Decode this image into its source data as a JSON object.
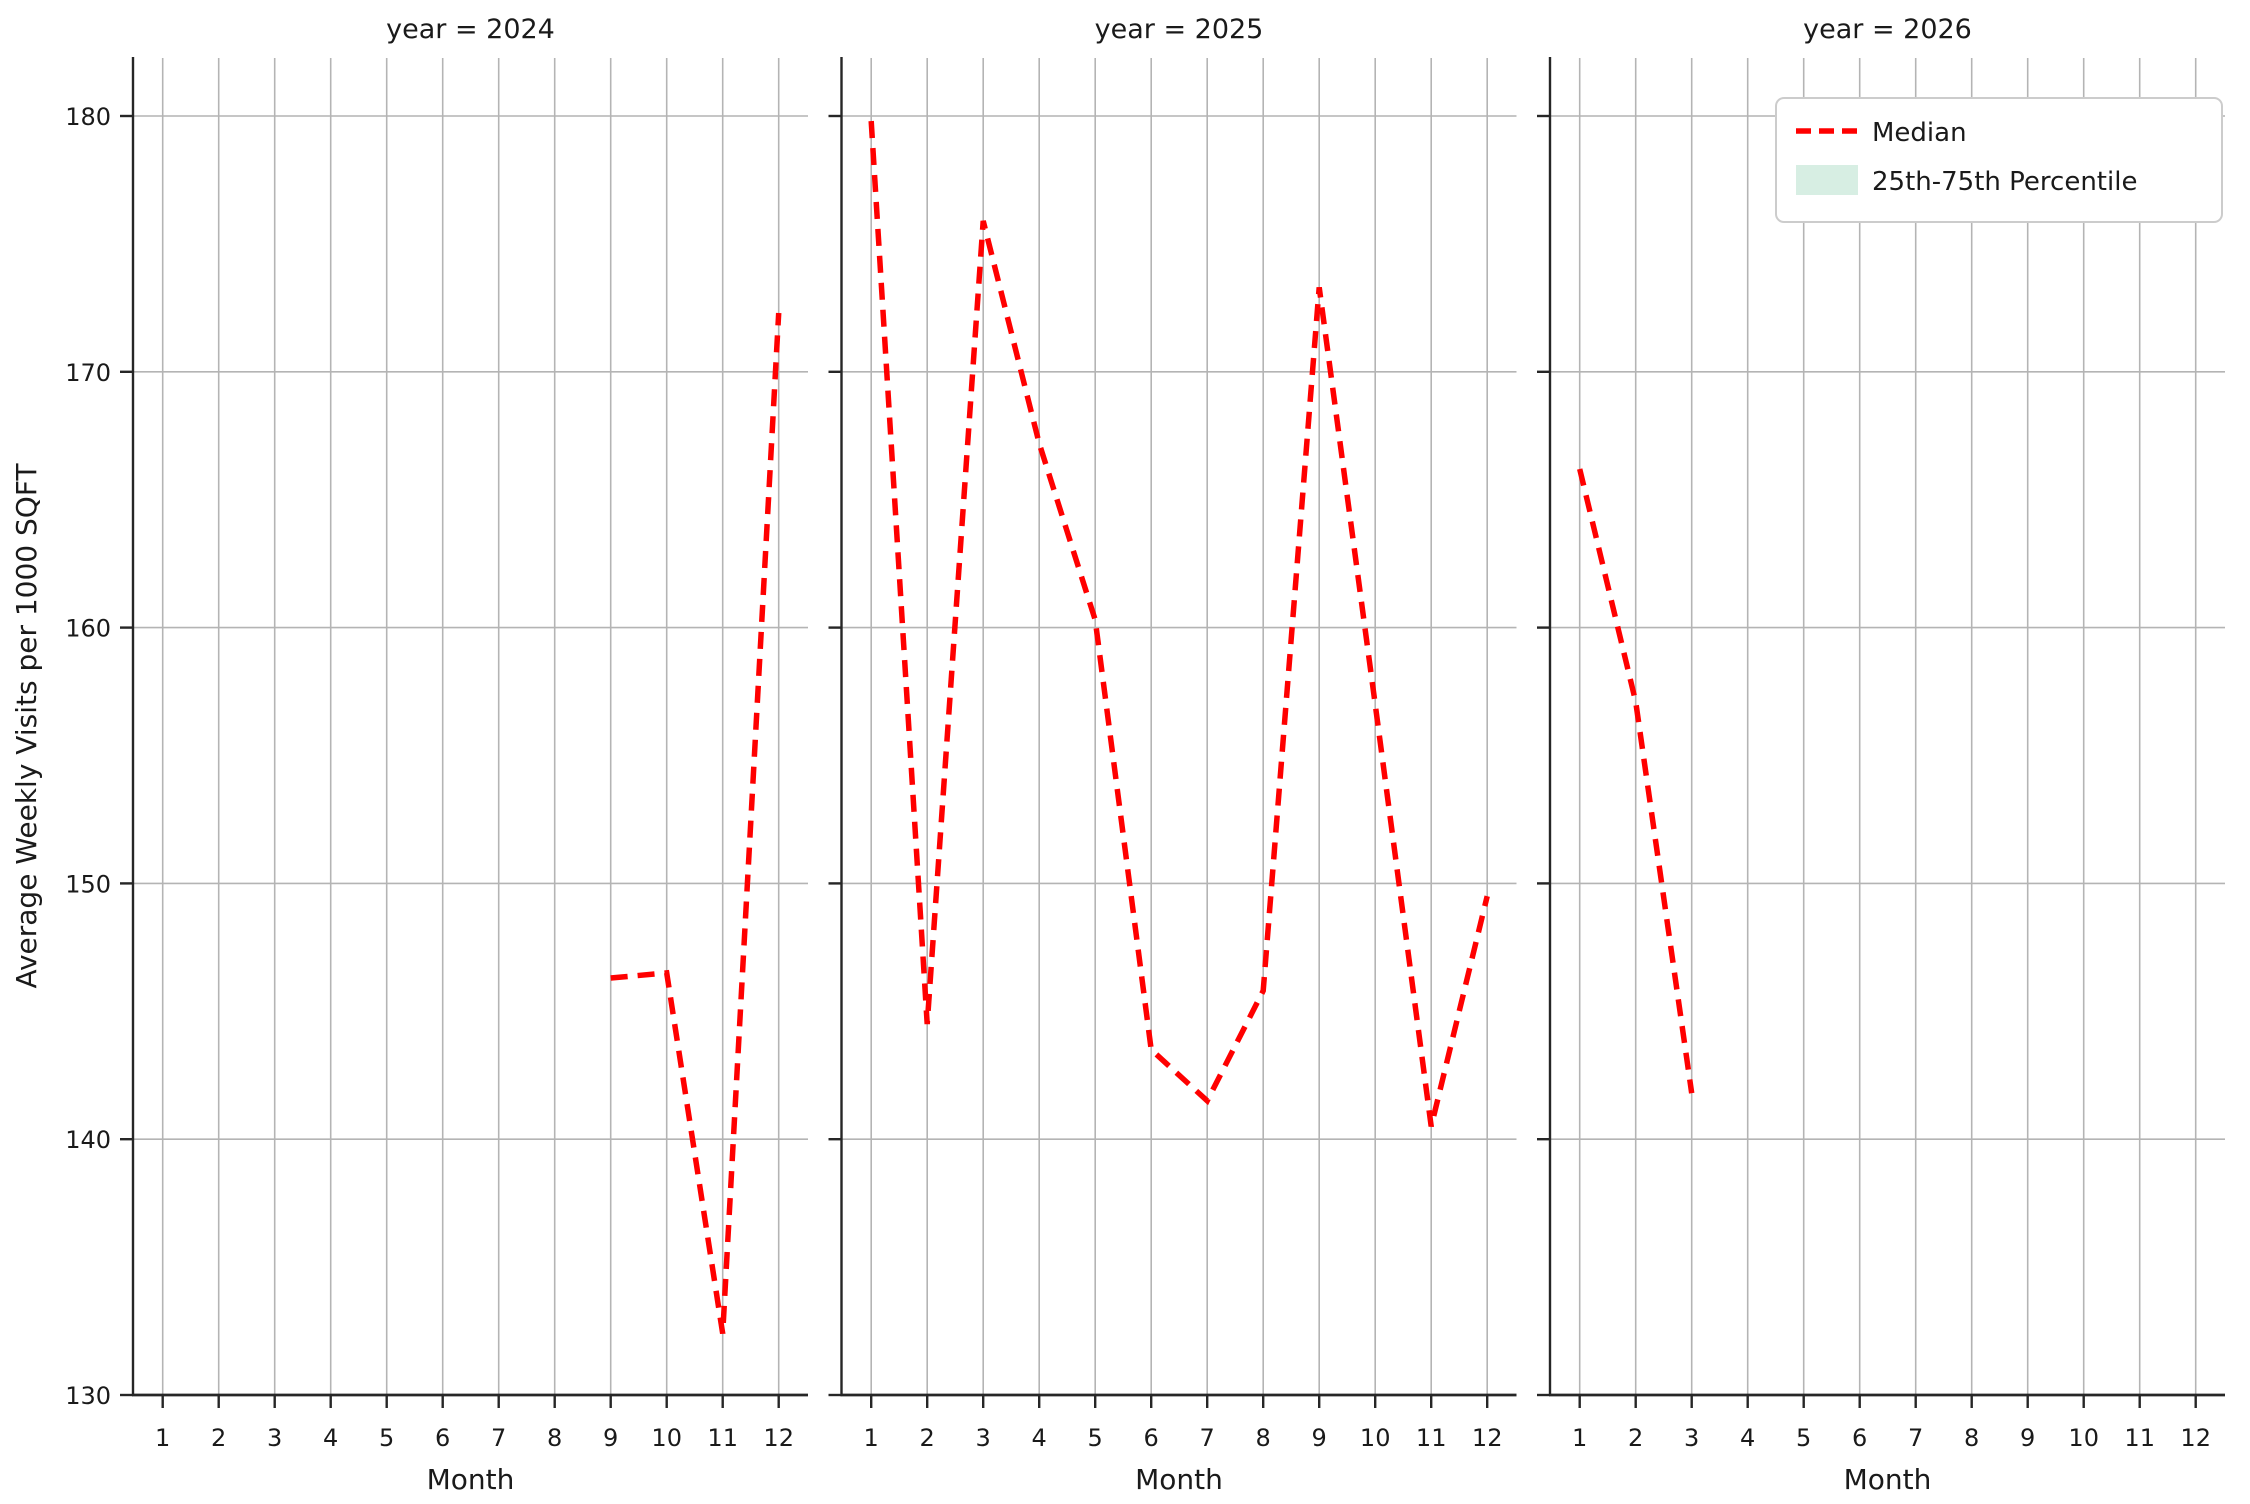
{
  "figure": {
    "panel_titles": [
      "year = 2024",
      "year = 2025",
      "year = 2026"
    ],
    "x_axis_label": "Month",
    "y_axis_label": "Average Weekly Visits per 1000 SQFT",
    "x_ticks": [
      1,
      2,
      3,
      4,
      5,
      6,
      7,
      8,
      9,
      10,
      11,
      12
    ],
    "y_ticks": [
      130,
      140,
      150,
      160,
      170,
      180
    ]
  },
  "legend": {
    "entries": [
      {
        "label": "Median",
        "swatch": "dashed-line-sample",
        "color": "#ff0000"
      },
      {
        "label": "25th-75th Percentile",
        "swatch": "patch-sample",
        "color": "#d7eee3"
      }
    ]
  },
  "colors": {
    "median_line": "#ff0000",
    "percentile_band": "#d7eee3",
    "grid": "#b4b4b4",
    "spine": "#262626",
    "text": "#1a1a1a",
    "legend_border": "#cccccc",
    "background": "#ffffff"
  },
  "chart_data": {
    "type": "line",
    "facet_by": "year",
    "title": "",
    "xlabel": "Month",
    "ylabel": "Average Weekly Visits per 1000 SQFT",
    "xlim": [
      0.47,
      12.53
    ],
    "ylim": [
      130,
      182.3
    ],
    "grid": true,
    "legend_position": "upper right of last facet",
    "series_name": "Median",
    "series_style": {
      "color": "#ff0000",
      "linestyle": "dashed"
    },
    "facets": [
      {
        "facet_title": "year = 2024",
        "year": 2024,
        "x": [
          9,
          10,
          11,
          12
        ],
        "y": [
          146.3,
          146.5,
          132.4,
          172.3
        ]
      },
      {
        "facet_title": "year = 2025",
        "year": 2025,
        "x": [
          1,
          2,
          3,
          4,
          5,
          6,
          7,
          8,
          9,
          10,
          11,
          12
        ],
        "y": [
          179.8,
          144.5,
          175.9,
          167.2,
          160.3,
          143.5,
          141.5,
          145.8,
          173.3,
          157.0,
          140.5,
          149.5
        ]
      },
      {
        "facet_title": "year = 2026",
        "year": 2026,
        "x": [
          1,
          2,
          3
        ],
        "y": [
          166.2,
          157.1,
          141.8
        ]
      }
    ]
  }
}
